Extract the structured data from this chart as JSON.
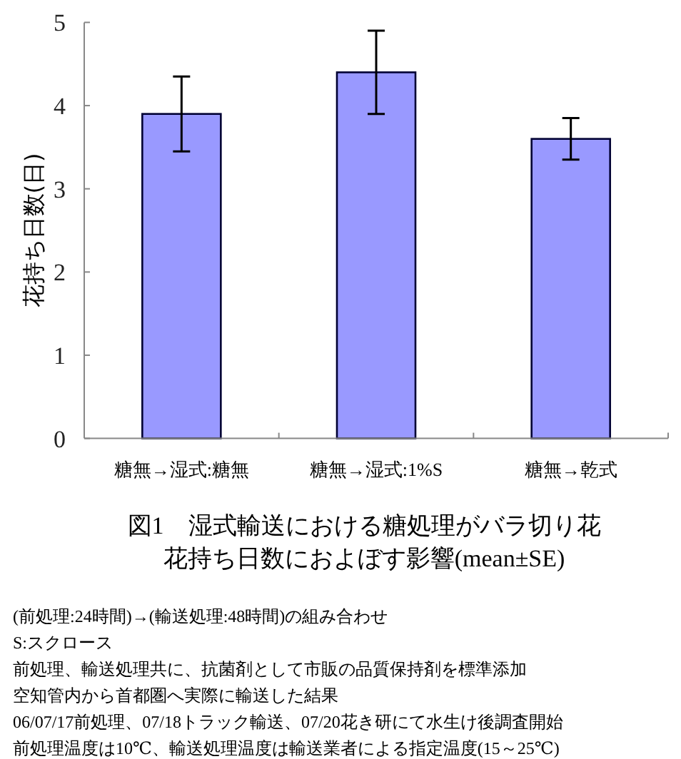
{
  "chart_data": {
    "type": "bar",
    "title": "図1　湿式輸送における糖処理がバラ切り花",
    "subtitle": "花持ち日数におよぼす影響(mean±SE)",
    "ylabel": "花持ち日数(日)",
    "categories": [
      "糖無→湿式:糖無",
      "糖無→湿式:1%S",
      "糖無→乾式"
    ],
    "values": [
      3.9,
      4.4,
      3.6
    ],
    "errors": [
      0.45,
      0.5,
      0.25
    ],
    "color": "#9999ff",
    "ylim": [
      0,
      5
    ],
    "yticks": [
      0,
      1,
      2,
      3,
      4,
      5
    ],
    "annotations": [
      "(前処理:24時間)→(輸送処理:48時間)の組み合わせ",
      "S:スクロース",
      "前処理、輸送処理共に、抗菌剤として市販の品質保持剤を標準添加",
      "空知管内から首都圏へ実際に輸送した結果",
      "06/07/17前処理、07/18トラック輸送、07/20花き研にて水生け後調査開始",
      "前処理温度は10℃、輸送処理温度は輸送業者による指定温度(15～25℃)"
    ]
  }
}
